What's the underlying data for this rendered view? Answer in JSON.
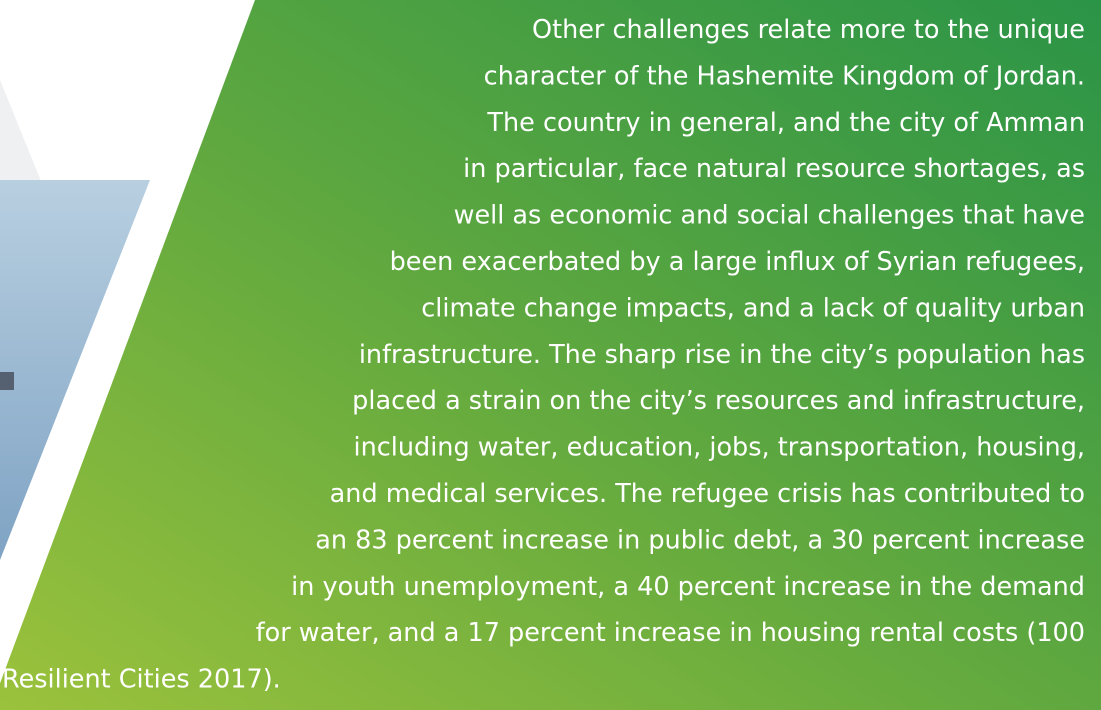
{
  "paragraph": {
    "lines": [
      "Other challenges relate more to the unique",
      "character of the Hashemite Kingdom of Jordan.",
      "The country in general, and the city of Amman",
      "in particular, face natural resource shortages, as",
      "well as economic and social challenges that have",
      "been exacerbated by a large influx of Syrian refugees,",
      "climate change impacts, and a lack of quality urban",
      "infrastructure. The sharp rise in the city’s population has",
      "placed a strain on the city’s resources and infrastructure,",
      "including water, education, jobs, transportation, housing,",
      "and medical services. The refugee crisis has contributed to",
      "an 83 percent increase in public debt, a 30 percent increase",
      "in youth unemployment, a 40 percent increase in the demand",
      "for water, and a 17 percent increase in housing rental costs (100",
      "Resilient Cities 2017)."
    ]
  }
}
